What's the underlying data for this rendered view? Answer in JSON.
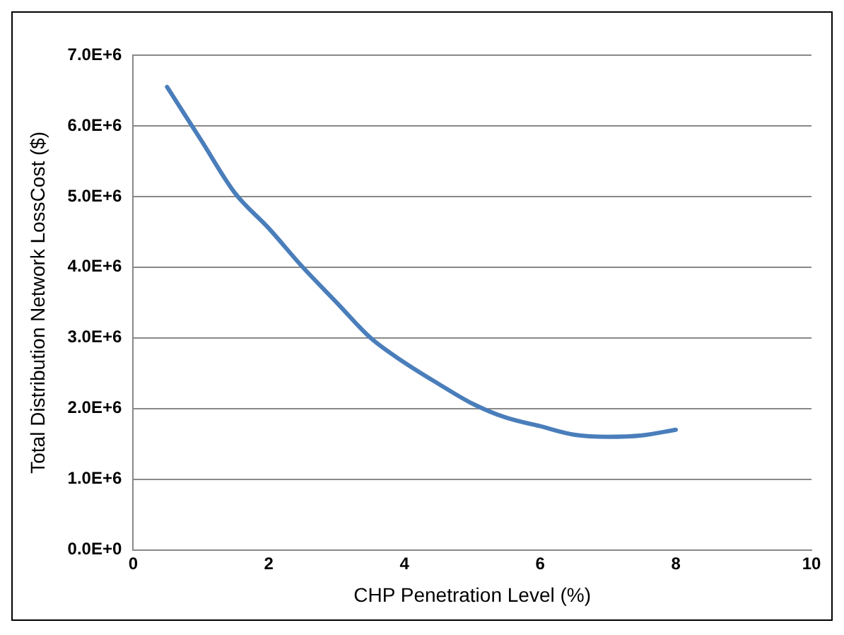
{
  "chart_data": {
    "type": "line",
    "xlabel": "CHP Penetration Level (%)",
    "ylabel": "Total Distribution Network LossCost ($)",
    "x": [
      0.5,
      1,
      1.5,
      2,
      2.5,
      3,
      3.5,
      4,
      4.5,
      5,
      5.5,
      6,
      6.5,
      7,
      7.5,
      8
    ],
    "series": [
      {
        "color": "#4a7ebb",
        "values": [
          6550000,
          5800000,
          5050000,
          4550000,
          4000000,
          3500000,
          3000000,
          2650000,
          2350000,
          2070000,
          1870000,
          1750000,
          1630000,
          1600000,
          1620000,
          1700000
        ]
      }
    ],
    "xlim": [
      0,
      10
    ],
    "xticks": [
      0,
      2,
      4,
      6,
      8,
      10
    ],
    "ylim": [
      0,
      7000000
    ],
    "yticks": [
      {
        "value": 0,
        "label": "0.0E+0"
      },
      {
        "value": 1000000,
        "label": "1.0E+6"
      },
      {
        "value": 2000000,
        "label": "2.0E+6"
      },
      {
        "value": 3000000,
        "label": "3.0E+6"
      },
      {
        "value": 4000000,
        "label": "4.0E+6"
      },
      {
        "value": 5000000,
        "label": "5.0E+6"
      },
      {
        "value": 6000000,
        "label": "6.0E+6"
      },
      {
        "value": 7000000,
        "label": "7.0E+6"
      }
    ],
    "grid": "y",
    "legend": false,
    "marker": "none",
    "line_style": "solid"
  }
}
